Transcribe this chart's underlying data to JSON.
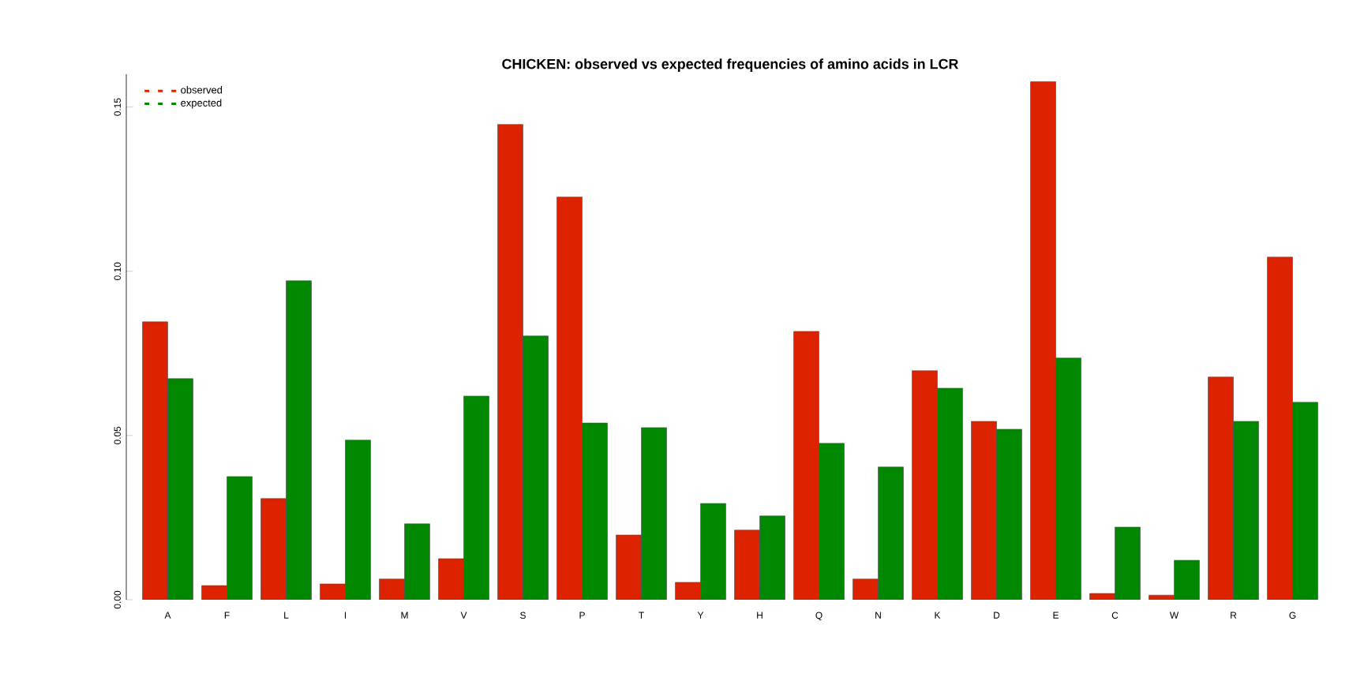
{
  "chart_data": {
    "type": "bar",
    "title": "CHICKEN: observed vs expected frequencies of amino acids in LCR",
    "categories": [
      "A",
      "F",
      "L",
      "I",
      "M",
      "V",
      "S",
      "P",
      "T",
      "Y",
      "H",
      "Q",
      "N",
      "K",
      "D",
      "E",
      "C",
      "W",
      "R",
      "G"
    ],
    "series": [
      {
        "name": "observed",
        "color": "#dd2200",
        "values": [
          0.0846,
          0.0043,
          0.0308,
          0.0048,
          0.0063,
          0.0125,
          0.1447,
          0.1226,
          0.0197,
          0.0053,
          0.0212,
          0.0817,
          0.0063,
          0.0697,
          0.0543,
          0.1577,
          0.0019,
          0.0014,
          0.0678,
          0.1043
        ]
      },
      {
        "name": "expected",
        "color": "#008800",
        "values": [
          0.0673,
          0.0375,
          0.0971,
          0.0486,
          0.0231,
          0.062,
          0.0803,
          0.0538,
          0.0524,
          0.0293,
          0.0255,
          0.0476,
          0.0404,
          0.0644,
          0.0519,
          0.0736,
          0.0221,
          0.012,
          0.0543,
          0.0601
        ]
      }
    ],
    "ylim": [
      0,
      0.16
    ],
    "yticks": [
      {
        "value": 0,
        "label": "0.00"
      },
      {
        "value": 0.05,
        "label": "0.05"
      },
      {
        "value": 0.1,
        "label": "0.10"
      },
      {
        "value": 0.15,
        "label": "0.15"
      }
    ],
    "legend": "top left"
  }
}
